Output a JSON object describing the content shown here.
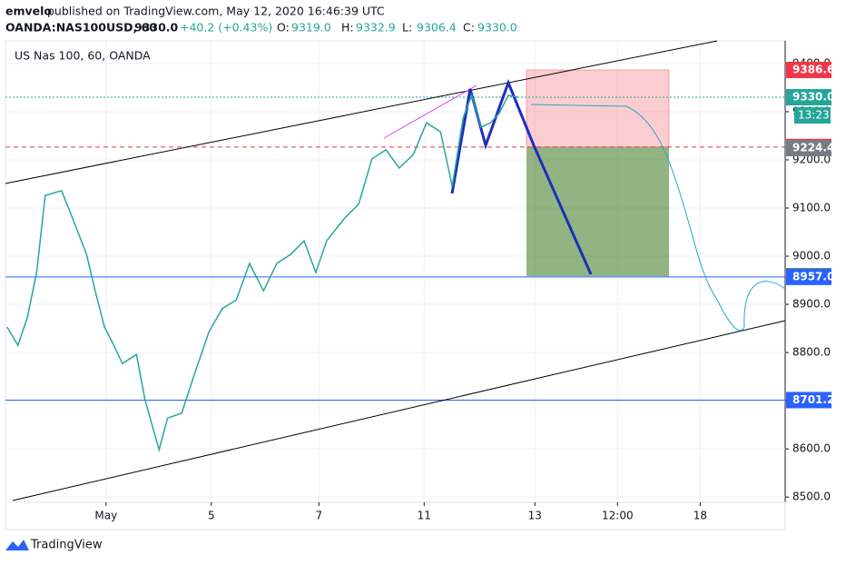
{
  "chart_data": {
    "type": "line",
    "header": {
      "author": "emvelo",
      "published": "published on TradingView.com, May 12, 2020 16:46:39 UTC",
      "symbol": "OANDA:NAS100USD, 60",
      "last": "9330.0",
      "change": "+40.2 (+0.43%)",
      "ohlc": [
        {
          "label": "O:",
          "value": "9319.0"
        },
        {
          "label": "H:",
          "value": "9332.9"
        },
        {
          "label": "L:",
          "value": "9306.4"
        },
        {
          "label": "C:",
          "value": "9330.0"
        }
      ]
    },
    "title": "US Nas 100, 60, OANDA",
    "footer": "TradingView",
    "x": [
      0.2,
      1.6,
      2.8,
      4.0,
      5.1,
      7.2,
      8.6,
      10.4,
      11.5,
      12.7,
      13.9,
      15.0,
      16.8,
      17.9,
      19.7,
      20.8,
      22.6,
      24.3,
      26.1,
      27.8,
      29.6,
      31.3,
      33.1,
      34.8,
      36.6,
      38.3,
      39.8,
      41.2,
      43.5,
      45.3,
      47.0,
      48.8,
      50.5,
      52.3,
      54.0,
      55.8,
      57.3,
      58.7,
      59.8,
      61.0,
      62.2,
      63.3,
      64.5,
      65.7
    ],
    "series": [
      {
        "color": "#26a69a",
        "values": [
          8853,
          8815,
          8872,
          8966,
          9126,
          9136,
          9079,
          9004,
          8928,
          8853,
          8815,
          8777,
          8796,
          8702,
          8598,
          8664,
          8674,
          8758,
          8843,
          8891,
          8909,
          8985,
          8928,
          8985,
          9004,
          9032,
          8966,
          9032,
          9079,
          9108,
          9202,
          9221,
          9183,
          9211,
          9277,
          9258,
          9145,
          9287,
          9334,
          9268,
          9277,
          9296,
          9334,
          9330
        ]
      }
    ],
    "xlim": [
      0,
      100
    ],
    "xticks": [
      {
        "value": 12.9,
        "label": "May"
      },
      {
        "value": 26.4,
        "label": "5"
      },
      {
        "value": 40.2,
        "label": "7"
      },
      {
        "value": 53.7,
        "label": "11"
      },
      {
        "value": 67.9,
        "label": "13"
      },
      {
        "value": 78.5,
        "label": "12:00"
      },
      {
        "value": 89.1,
        "label": "18"
      }
    ],
    "ylim": [
      8489,
      9447
    ],
    "yticks": [
      {
        "value": 8500,
        "label": "8500.0"
      },
      {
        "value": 8600,
        "label": "8600.0"
      },
      {
        "value": 8700,
        "label": "8700.0"
      },
      {
        "value": 8800,
        "label": "8800.0"
      },
      {
        "value": 8900,
        "label": "8900.0"
      },
      {
        "value": 9000,
        "label": "9000.0"
      },
      {
        "value": 9100,
        "label": "9100.0"
      },
      {
        "value": 9200,
        "label": "9200.0"
      },
      {
        "value": 9300,
        "label": "9300.0"
      },
      {
        "value": 9400,
        "label": "9400.0"
      }
    ],
    "grid": true,
    "price_labels": [
      {
        "value": 9386.6,
        "color": "#f23645"
      },
      {
        "value": 9330,
        "label": "9330.0",
        "color": "#26a69a"
      },
      {
        "value": 9226.7,
        "color": "#f23645"
      },
      {
        "value": 9224.4,
        "label": "9224.4",
        "color": "#787b86"
      },
      {
        "value": 8958.2,
        "label": "8958.2",
        "color": "#3c7a1e"
      },
      {
        "value": 8957,
        "label": "8957.0",
        "color": "#2962ff"
      },
      {
        "value": 8701.2,
        "label": "8701.2",
        "color": "#2962ff"
      }
    ],
    "countdown": {
      "label": "13:23",
      "color": "#26a69a"
    }
  }
}
